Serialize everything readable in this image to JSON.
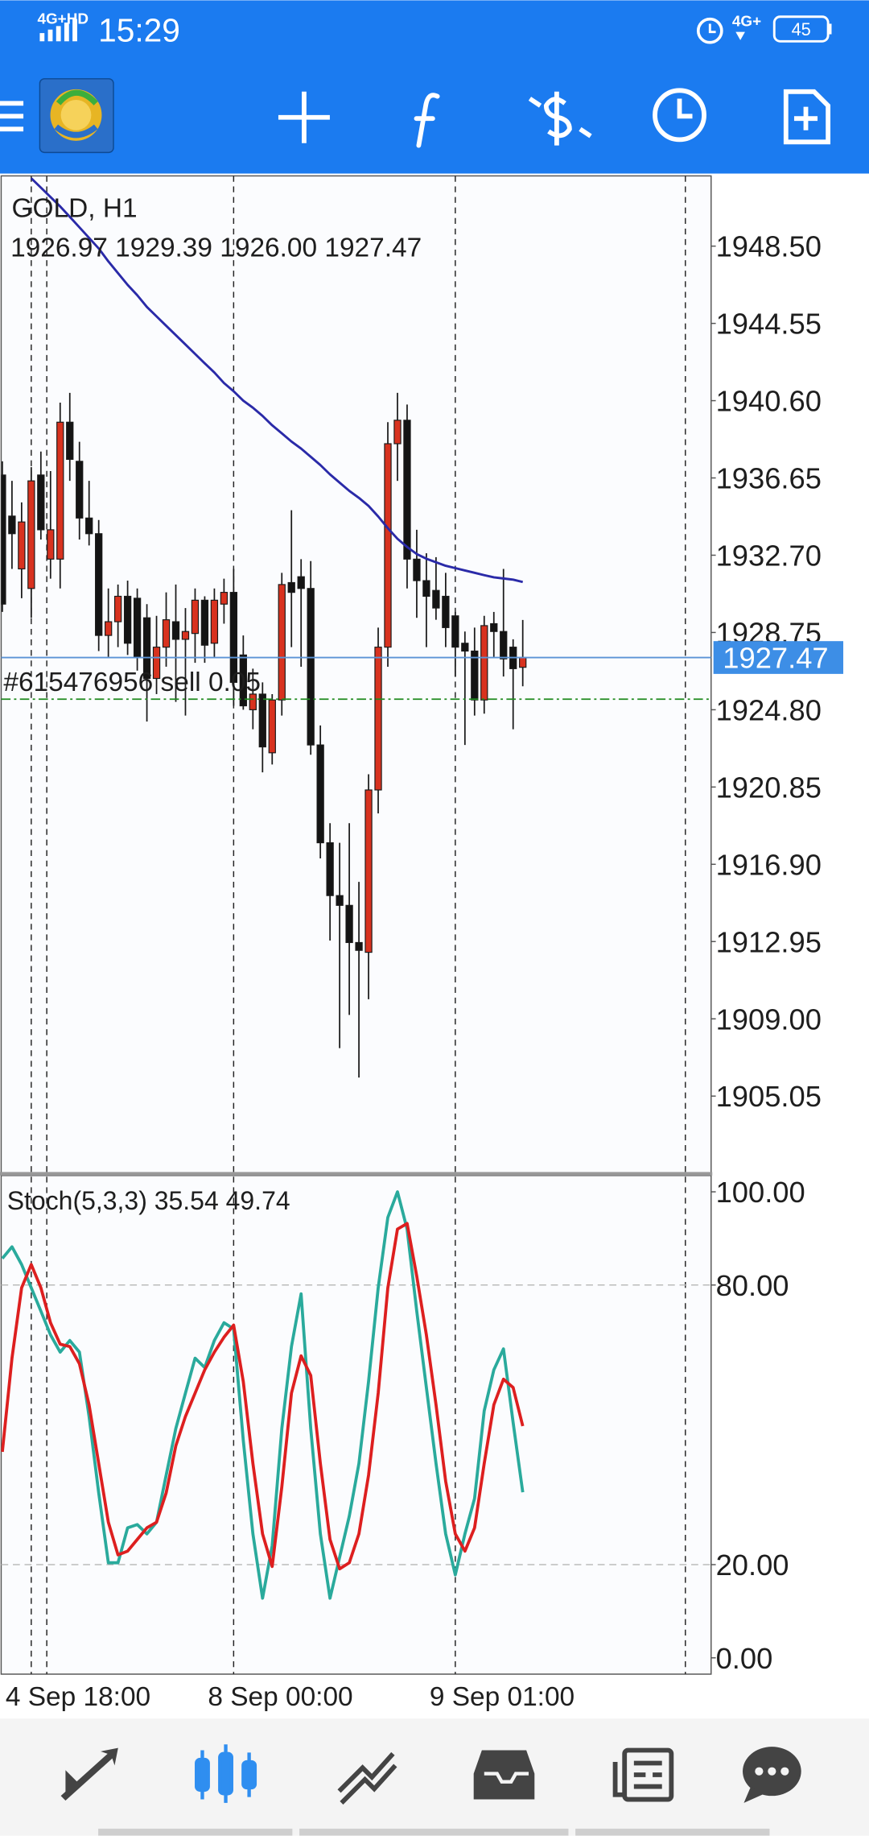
{
  "status_bar": {
    "network": "4G+HD",
    "time": "15:29",
    "network2": "4G+",
    "battery": "45"
  },
  "chart_data": [
    {
      "type": "candlestick",
      "title": "GOLD, H1",
      "subtitle": "1926.97 1929.39 1926.00 1927.47",
      "categories": [
        null,
        null,
        null,
        "4 Sep 18:00",
        null,
        null,
        null,
        null,
        null,
        null,
        null,
        null,
        null,
        null,
        null,
        null,
        null,
        null,
        null,
        null,
        null,
        null,
        null,
        null,
        "8 Sep 00:00",
        null,
        null,
        null,
        null,
        null,
        null,
        null,
        null,
        null,
        null,
        null,
        null,
        null,
        null,
        null,
        null,
        null,
        null,
        null,
        null,
        null,
        null,
        "9 Sep 01:00",
        null,
        null,
        null,
        null,
        null,
        null,
        null
      ],
      "open": [
        1936.8,
        1934.7,
        1932.0,
        1931.0,
        1936.8,
        1932.5,
        1932.5,
        1939.5,
        1937.5,
        1934.6,
        1933.8,
        1928.6,
        1929.3,
        1930.6,
        1930.5,
        1929.5,
        1926.4,
        1928.0,
        1929.3,
        1928.4,
        1928.7,
        1930.4,
        1928.2,
        1930.2,
        1930.8,
        1927.6,
        1924.8,
        1925.6,
        1922.6,
        1925.3,
        1931.3,
        1931.6,
        1931.0,
        1923.0,
        1918.0,
        1915.3,
        1914.8,
        1912.9,
        1912.4,
        1920.7,
        1928.0,
        1938.4,
        1939.6,
        1932.5,
        1931.4,
        1930.9,
        1930.6,
        1929.6,
        1928.2,
        1927.8,
        1925.3,
        1929.2,
        1928.8,
        1928.0,
        1926.97
      ],
      "high": [
        1937.5,
        1936.5,
        1935.4,
        1937.2,
        1938.0,
        1937.0,
        1940.5,
        1941.0,
        1938.5,
        1936.5,
        1934.5,
        1931.0,
        1931.2,
        1931.4,
        1931.0,
        1930.2,
        1929.6,
        1930.8,
        1931.2,
        1930.0,
        1931.0,
        1930.6,
        1931.0,
        1931.5,
        1932.0,
        1928.6,
        1926.9,
        1926.2,
        1925.6,
        1931.8,
        1935.0,
        1932.5,
        1932.4,
        1924.0,
        1919.0,
        1918.0,
        1919.0,
        1916.0,
        1921.5,
        1929.0,
        1939.5,
        1941.0,
        1940.4,
        1934.0,
        1932.8,
        1932.6,
        1931.8,
        1929.8,
        1928.8,
        1929.0,
        1929.6,
        1929.8,
        1932.0,
        1928.4,
        1929.39
      ],
      "low": [
        1929.8,
        1932.0,
        1930.5,
        1929.5,
        1933.5,
        1931.5,
        1931.0,
        1936.5,
        1933.5,
        1933.2,
        1927.8,
        1927.5,
        1928.0,
        1927.6,
        1926.8,
        1924.2,
        1925.6,
        1927.0,
        1925.2,
        1924.5,
        1927.2,
        1927.2,
        1927.5,
        1929.2,
        1925.0,
        1924.8,
        1923.8,
        1921.6,
        1922.0,
        1924.5,
        1928.0,
        1927.0,
        1922.5,
        1917.2,
        1913.0,
        1907.5,
        1909.2,
        1906.0,
        1910.0,
        1919.5,
        1927.0,
        1936.5,
        1931.0,
        1929.5,
        1928.0,
        1929.4,
        1928.0,
        1926.5,
        1923.0,
        1924.5,
        1924.6,
        1927.5,
        1926.5,
        1923.8,
        1926.0
      ],
      "close": [
        1930.2,
        1933.8,
        1934.4,
        1936.5,
        1934.0,
        1934.0,
        1939.5,
        1937.6,
        1934.6,
        1933.8,
        1928.6,
        1929.3,
        1930.6,
        1928.2,
        1927.5,
        1926.4,
        1928.0,
        1929.4,
        1928.4,
        1928.8,
        1930.4,
        1928.1,
        1930.4,
        1930.8,
        1926.2,
        1925.0,
        1925.6,
        1922.9,
        1925.3,
        1931.2,
        1930.8,
        1931.0,
        1923.0,
        1918.0,
        1915.3,
        1914.8,
        1912.9,
        1912.5,
        1920.7,
        1928.0,
        1938.4,
        1939.6,
        1932.5,
        1931.4,
        1930.6,
        1930.0,
        1929.0,
        1928.0,
        1927.8,
        1925.3,
        1929.1,
        1928.8,
        1927.4,
        1926.9,
        1927.47
      ],
      "up_color": "#d8321f",
      "down_color": "#141414",
      "moving_average": {
        "color": "#2a2aa8",
        "values": [
          null,
          null,
          null,
          1951.97,
          1951.49,
          1951.01,
          1950.53,
          1950.0,
          1949.46,
          1948.92,
          1948.38,
          1947.72,
          1947.12,
          1946.52,
          1945.99,
          1945.39,
          1944.91,
          1944.43,
          1943.95,
          1943.47,
          1942.99,
          1942.51,
          1942.04,
          1941.5,
          1941.08,
          1940.6,
          1940.24,
          1939.82,
          1939.34,
          1938.93,
          1938.51,
          1938.15,
          1937.73,
          1937.31,
          1936.83,
          1936.41,
          1935.99,
          1935.63,
          1935.22,
          1934.68,
          1934.08,
          1933.54,
          1933.12,
          1932.76,
          1932.52,
          1932.34,
          1932.16,
          1932.04,
          1931.92,
          1931.8,
          1931.68,
          1931.57,
          1931.51,
          1931.45,
          1931.33
        ]
      },
      "current_price": 1927.47,
      "order": {
        "label": "#615476956 sell 0.05",
        "value": 1925.34
      },
      "ylim": [
        1901.11,
        1952.09
      ],
      "yticks": [
        {
          "value": 1948.5,
          "label": "1948.50"
        },
        1944.55,
        {
          "value": 1940.6,
          "label": "1940.60"
        },
        1936.65,
        {
          "value": 1932.7,
          "label": "1932.70"
        },
        1928.75,
        {
          "value": 1924.8,
          "label": "1924.80"
        },
        1920.85,
        {
          "value": 1916.9,
          "label": "1916.90"
        },
        1912.95,
        {
          "value": 1909,
          "label": "1909.00"
        },
        1905.05
      ]
    },
    {
      "type": "line",
      "title": "Stoch(5,3,3) 35.54 49.74",
      "series": [
        {
          "color": "#2aaa9c",
          "values": [
            85.7,
            88.2,
            84.4,
            79.4,
            74.4,
            69.3,
            65.6,
            68.1,
            65.6,
            51.8,
            35.4,
            20.4,
            20.4,
            27.9,
            28.6,
            26.6,
            29.1,
            39.2,
            49.2,
            56.8,
            64.3,
            62.3,
            68.1,
            71.9,
            70.6,
            46.7,
            26.6,
            12.8,
            24.1,
            49.2,
            66.8,
            78.1,
            49.2,
            26.6,
            12.8,
            21.6,
            30.4,
            41.7,
            59.3,
            79.4,
            94.5,
            100.0,
            92.0,
            74.4,
            58.0,
            41.7,
            26.6,
            17.8,
            26.6,
            34.2,
            53.0,
            61.8,
            66.3,
            50.5,
            35.54
          ]
        },
        {
          "color": "#dd1f1f",
          "values": [
            44.2,
            64.3,
            79.4,
            84.4,
            79.4,
            71.9,
            67.3,
            66.8,
            63.1,
            54.3,
            41.7,
            29.1,
            22.1,
            22.9,
            25.4,
            27.9,
            29.1,
            35.4,
            45.5,
            51.8,
            56.8,
            61.8,
            65.6,
            68.8,
            71.4,
            59.3,
            41.7,
            26.6,
            19.6,
            36.7,
            56.8,
            64.8,
            60.6,
            41.7,
            25.4,
            19.1,
            20.4,
            26.6,
            39.2,
            56.8,
            79.4,
            92.0,
            93.2,
            81.9,
            69.3,
            54.3,
            37.9,
            26.6,
            22.9,
            27.9,
            41.7,
            54.3,
            59.8,
            58.0,
            49.74
          ]
        }
      ],
      "levels": [
        80,
        20
      ],
      "ylim": [
        -3.5,
        103.5
      ],
      "yticks": [
        {
          "value": 100,
          "label": "100.00"
        },
        {
          "value": 80,
          "label": "80.00"
        },
        {
          "value": 20,
          "label": "20.00"
        },
        {
          "value": 0,
          "label": "0.00"
        }
      ]
    }
  ]
}
